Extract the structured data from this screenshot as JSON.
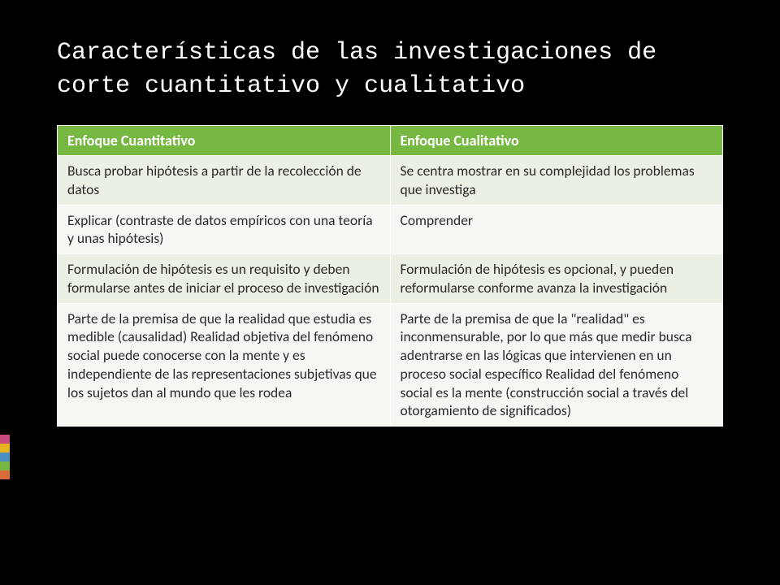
{
  "slide": {
    "title": "Características de las investigaciones de corte cuantitativo y cualitativo",
    "background_color": "#000000",
    "title_color": "#ffffff",
    "title_font": "Courier New",
    "title_fontsize": 30
  },
  "table": {
    "header_bg": "#77b843",
    "header_text_color": "#ffffff",
    "row_light_bg": "#eaf1e4",
    "row_lighter_bg": "#f5f8f2",
    "cell_text_color": "#2a2a2a",
    "font_size": 18,
    "columns": [
      "Enfoque Cuantitativo",
      "Enfoque Cualitativo"
    ],
    "rows": [
      [
        "Busca probar hipótesis a partir de la recolección de datos",
        "Se centra mostrar en su complejidad los problemas que investiga"
      ],
      [
        "Explicar (contraste de datos empíricos con una teoría y unas hipótesis)",
        "Comprender"
      ],
      [
        "Formulación de hipótesis es un requisito y deben formularse antes de iniciar el proceso de investigación",
        "Formulación de hipótesis es opcional, y pueden reformularse conforme avanza la investigación"
      ],
      [
        "Parte de la premisa de que la realidad que estudia es medible (causalidad) Realidad objetiva del fenómeno social puede conocerse con la mente y es independiente de las representaciones subjetivas que los sujetos dan al mundo que les rodea",
        "Parte de la premisa de que la \"realidad\" es inconmensurable, por lo que más que medir busca adentrarse en las lógicas que intervienen en un proceso social específico Realidad del fenómeno social es la mente (construcción social a través del otorgamiento de significados)"
      ]
    ]
  },
  "accent_bars": {
    "colors": [
      "#c94a7c",
      "#e6b422",
      "#4a8fc2",
      "#77b843",
      "#d96b3a"
    ]
  }
}
